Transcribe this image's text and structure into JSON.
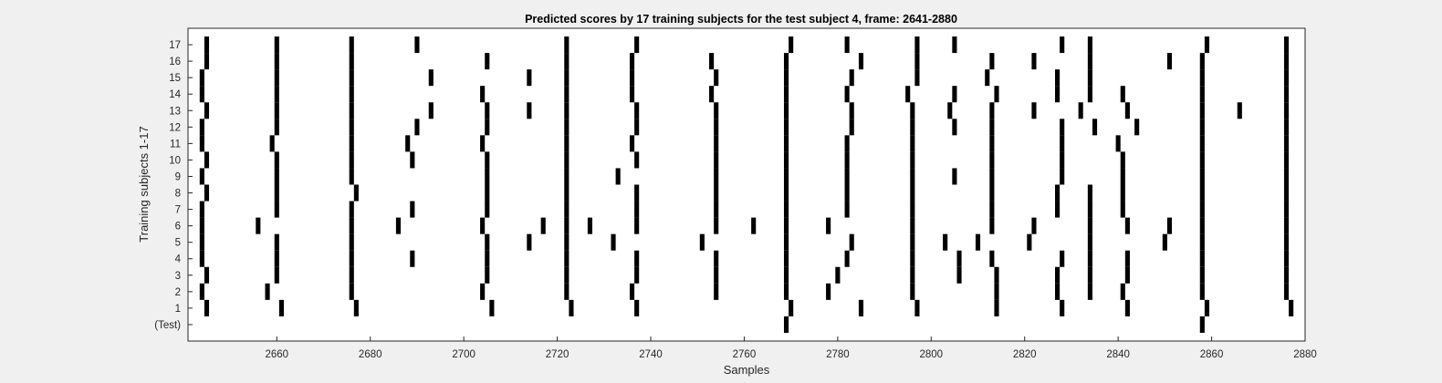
{
  "chart_data": {
    "type": "event-raster",
    "title": "Predicted scores by 17 training subjects for the test subject 4, frame: 2641-2880",
    "xlabel": "Samples",
    "ylabel": "Training subjects 1-17",
    "xlim": [
      2641,
      2880
    ],
    "xticks": [
      2660,
      2680,
      2700,
      2720,
      2740,
      2760,
      2780,
      2800,
      2820,
      2840,
      2860,
      2880
    ],
    "ylim": [
      -1,
      18
    ],
    "y_tick_labels": [
      "(Test)",
      "1",
      "2",
      "3",
      "4",
      "5",
      "6",
      "7",
      "8",
      "9",
      "10",
      "11",
      "12",
      "13",
      "14",
      "15",
      "16",
      "17"
    ],
    "mark_color": "#000000",
    "background": "#ffffff",
    "grid": false,
    "rows": [
      {
        "label": "(Test)",
        "events": [
          2769,
          2858
        ]
      },
      {
        "label": "1",
        "events": [
          2645,
          2661,
          2677,
          2706,
          2723,
          2737,
          2770,
          2785,
          2797,
          2814,
          2828,
          2842,
          2859,
          2877
        ]
      },
      {
        "label": "2",
        "events": [
          2644,
          2658,
          2676,
          2704,
          2722,
          2736,
          2754,
          2769,
          2778,
          2796,
          2814,
          2827,
          2834,
          2841,
          2858,
          2876
        ]
      },
      {
        "label": "3",
        "events": [
          2645,
          2660,
          2676,
          2705,
          2722,
          2737,
          2754,
          2769,
          2780,
          2796,
          2806,
          2814,
          2827,
          2834,
          2842,
          2858,
          2876
        ]
      },
      {
        "label": "4",
        "events": [
          2644,
          2660,
          2676,
          2689,
          2705,
          2722,
          2737,
          2754,
          2769,
          2782,
          2796,
          2806,
          2813,
          2828,
          2834,
          2842,
          2858,
          2876
        ]
      },
      {
        "label": "5",
        "events": [
          2644,
          2660,
          2676,
          2705,
          2714,
          2722,
          2732,
          2751,
          2769,
          2783,
          2796,
          2803,
          2810,
          2821,
          2834,
          2850,
          2858,
          2876
        ]
      },
      {
        "label": "6",
        "events": [
          2644,
          2656,
          2676,
          2686,
          2704,
          2717,
          2722,
          2727,
          2737,
          2754,
          2762,
          2769,
          2778,
          2796,
          2813,
          2822,
          2834,
          2842,
          2851,
          2858,
          2876
        ]
      },
      {
        "label": "7",
        "events": [
          2644,
          2660,
          2676,
          2689,
          2705,
          2722,
          2737,
          2754,
          2769,
          2782,
          2796,
          2813,
          2827,
          2834,
          2841,
          2858,
          2876
        ]
      },
      {
        "label": "8",
        "events": [
          2645,
          2660,
          2677,
          2705,
          2722,
          2737,
          2754,
          2769,
          2782,
          2796,
          2813,
          2827,
          2834,
          2841,
          2858,
          2876
        ]
      },
      {
        "label": "9",
        "events": [
          2644,
          2660,
          2676,
          2705,
          2722,
          2733,
          2754,
          2769,
          2782,
          2796,
          2805,
          2813,
          2828,
          2841,
          2858,
          2876
        ]
      },
      {
        "label": "10",
        "events": [
          2645,
          2660,
          2676,
          2689,
          2705,
          2722,
          2737,
          2754,
          2769,
          2782,
          2796,
          2813,
          2828,
          2841,
          2858,
          2876
        ]
      },
      {
        "label": "11",
        "events": [
          2644,
          2659,
          2676,
          2688,
          2704,
          2722,
          2736,
          2754,
          2769,
          2782,
          2796,
          2813,
          2828,
          2840,
          2858,
          2876
        ]
      },
      {
        "label": "12",
        "events": [
          2644,
          2660,
          2676,
          2690,
          2705,
          2722,
          2737,
          2754,
          2769,
          2783,
          2796,
          2805,
          2813,
          2828,
          2835,
          2844,
          2858,
          2876
        ]
      },
      {
        "label": "13",
        "events": [
          2645,
          2660,
          2676,
          2693,
          2705,
          2714,
          2722,
          2737,
          2754,
          2769,
          2783,
          2796,
          2804,
          2813,
          2822,
          2832,
          2842,
          2858,
          2866,
          2876
        ]
      },
      {
        "label": "14",
        "events": [
          2644,
          2660,
          2676,
          2704,
          2722,
          2736,
          2753,
          2769,
          2782,
          2795,
          2805,
          2814,
          2827,
          2834,
          2841,
          2858,
          2876
        ]
      },
      {
        "label": "15",
        "events": [
          2644,
          2660,
          2676,
          2693,
          2714,
          2722,
          2736,
          2754,
          2769,
          2783,
          2797,
          2812,
          2827,
          2834,
          2858,
          2876
        ]
      },
      {
        "label": "16",
        "events": [
          2645,
          2660,
          2676,
          2705,
          2722,
          2736,
          2753,
          2769,
          2785,
          2797,
          2813,
          2822,
          2834,
          2851,
          2858,
          2876
        ]
      },
      {
        "label": "17",
        "events": [
          2645,
          2660,
          2676,
          2690,
          2722,
          2737,
          2770,
          2782,
          2797,
          2805,
          2828,
          2834,
          2859,
          2876
        ]
      }
    ]
  }
}
